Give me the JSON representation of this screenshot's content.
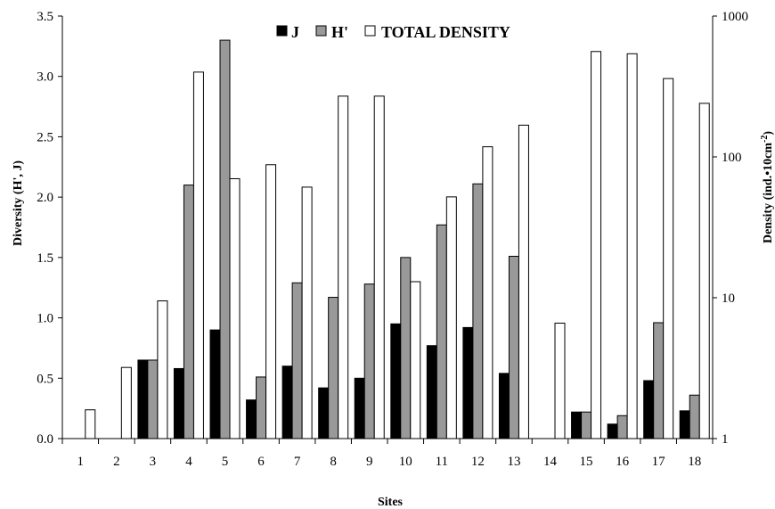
{
  "chart_data": {
    "type": "bar",
    "xlabel": "Sites",
    "ylabel_left": "Diversity (H', J)",
    "ylabel_right": "Density (ind.•10cm",
    "ylabel_right_superscript": "-2",
    "ylabel_right_suffix": ")",
    "categories": [
      "1",
      "2",
      "3",
      "4",
      "5",
      "6",
      "7",
      "8",
      "9",
      "10",
      "11",
      "12",
      "13",
      "14",
      "15",
      "16",
      "17",
      "18"
    ],
    "ylim_left": [
      0,
      3.5
    ],
    "yticks_left": [
      "0.0",
      "0.5",
      "1.0",
      "1.5",
      "2.0",
      "2.5",
      "3.0",
      "3.5"
    ],
    "ylim_right": [
      1,
      1000
    ],
    "y_right_scale": "log",
    "yticks_right": [
      "1",
      "10",
      "100",
      "1000"
    ],
    "legend_position": "top-center",
    "grid": false,
    "series": [
      {
        "name": "J",
        "axis": "left",
        "color": "#000000",
        "values": [
          0,
          0,
          0.65,
          0.58,
          0.9,
          0.32,
          0.6,
          0.42,
          0.5,
          0.95,
          0.77,
          0.92,
          0.54,
          0,
          0.22,
          0.12,
          0.48,
          0.23
        ]
      },
      {
        "name": "H'",
        "axis": "left",
        "color": "#999999",
        "values": [
          0,
          0,
          0.65,
          2.1,
          3.3,
          0.51,
          1.29,
          1.17,
          1.28,
          1.5,
          1.77,
          2.11,
          1.51,
          0,
          0.22,
          0.19,
          0.96,
          0.36
        ]
      },
      {
        "name": "TOTAL DENSITY",
        "axis": "right",
        "color": "#ffffff",
        "values": [
          1.6,
          3.2,
          9.5,
          400,
          70,
          88,
          61,
          270,
          270,
          13,
          52,
          118,
          168,
          6.6,
          560,
          540,
          360,
          240
        ]
      }
    ]
  }
}
